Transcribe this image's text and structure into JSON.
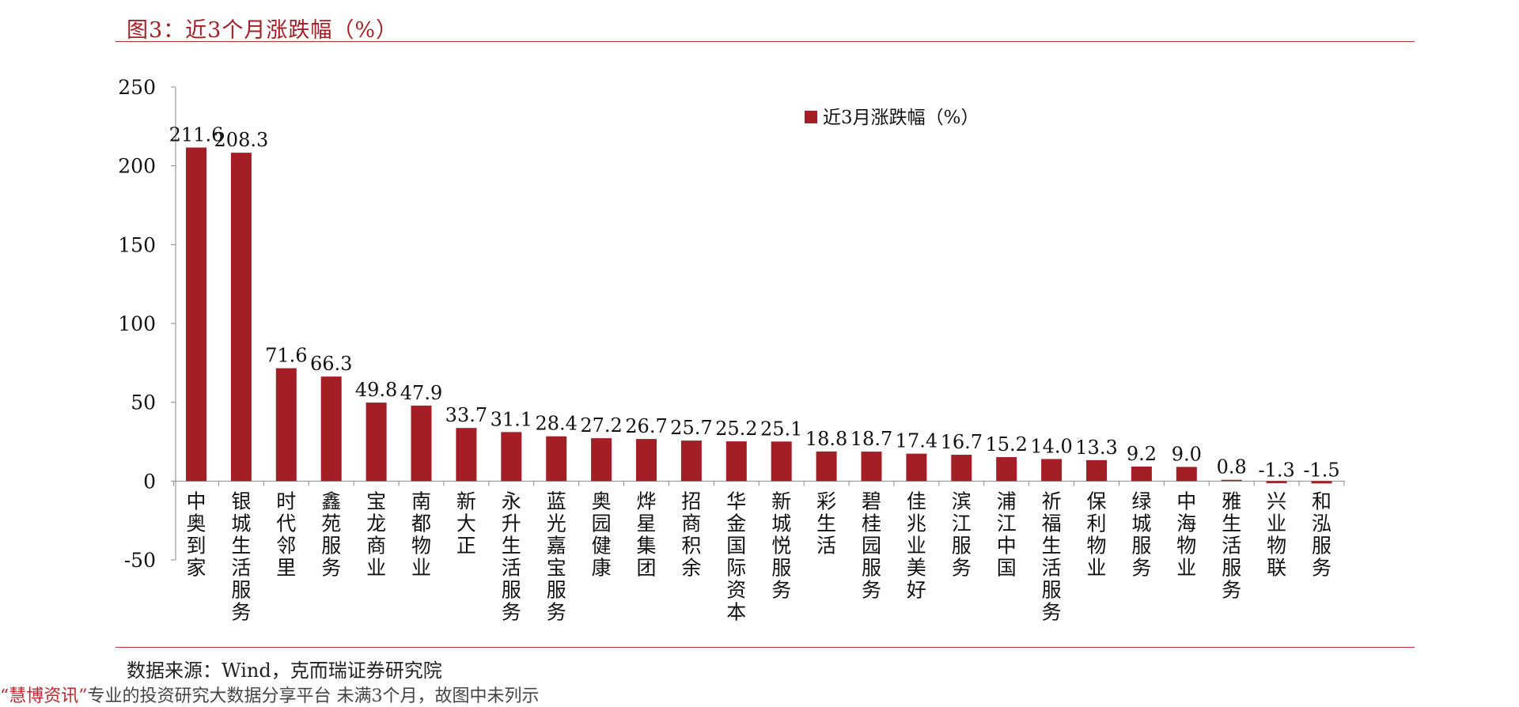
{
  "header": {
    "title": "图3：近3个月涨跌幅（%）"
  },
  "footer": {
    "source": "数据来源：Wind，克而瑞证券研究院",
    "strip_quote_open": "“",
    "strip_brand": "慧博资讯",
    "strip_quote_close": "”",
    "strip_text": "专业的投资研究大数据分享平台 未满3个月，故图中未列示"
  },
  "colors": {
    "bar": "#a31f25",
    "title": "#a31f25",
    "rule": "#b5343a"
  },
  "chart_data": {
    "type": "bar",
    "title": "图3：近3个月涨跌幅（%）",
    "xlabel": "",
    "ylabel": "",
    "ylim": [
      -50,
      250
    ],
    "yticks": [
      -50,
      0,
      50,
      100,
      150,
      200,
      250
    ],
    "ytick_labels": [
      "-50",
      "0",
      "50",
      "100",
      "150",
      "200",
      "250"
    ],
    "grid": false,
    "legend_position": "top-right",
    "categories": [
      "中奥到家",
      "银城生活服务",
      "时代邻里",
      "鑫苑服务",
      "宝龙商业",
      "南都物业",
      "新大正",
      "永升生活服务",
      "蓝光嘉宝服务",
      "奥园健康",
      "烨星集团",
      "招商积余",
      "华金国际资本",
      "新城悦服务",
      "彩生活",
      "碧桂园服务",
      "佳兆业美好",
      "滨江服务",
      "浦江中国",
      "祈福生活服务",
      "保利物业",
      "绿城服务",
      "中海物业",
      "雅生活服务",
      "兴业物联",
      "和泓服务"
    ],
    "series": [
      {
        "name": "近3月涨跌幅（%）",
        "values": [
          211.6,
          208.3,
          71.6,
          66.3,
          49.8,
          47.9,
          33.7,
          31.1,
          28.4,
          27.2,
          26.7,
          25.7,
          25.2,
          25.1,
          18.8,
          18.7,
          17.4,
          16.7,
          15.2,
          14.0,
          13.3,
          9.2,
          9.0,
          0.8,
          -1.3,
          -1.5
        ],
        "labels": [
          "211.6",
          "208.3",
          "71.6",
          "66.3",
          "49.8",
          "47.9",
          "33.7",
          "31.1",
          "28.4",
          "27.2",
          "26.7",
          "25.7",
          "25.2",
          "25.1",
          "18.8",
          "18.7",
          "17.4",
          "16.7",
          "15.2",
          "14.0",
          "13.3",
          "9.2",
          "9.0",
          "0.8",
          "-1.3",
          "-1.5"
        ]
      }
    ]
  }
}
